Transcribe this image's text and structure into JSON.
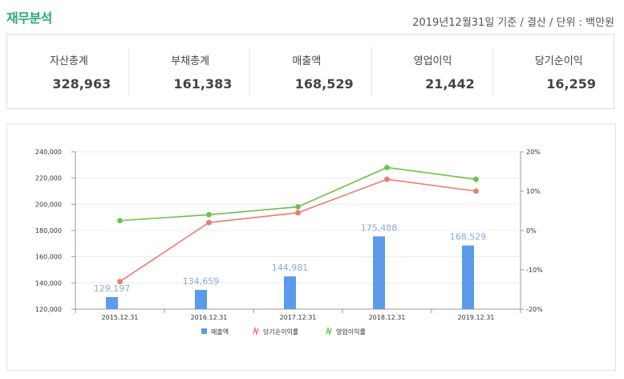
{
  "header": {
    "title": "재무분석",
    "basis": "2019년12월31일 기준 / 결산 / 단위 : 백만원"
  },
  "summary": [
    {
      "label": "자산총계",
      "value": "328,963"
    },
    {
      "label": "부채총계",
      "value": "161,383"
    },
    {
      "label": "매출액",
      "value": "168,529"
    },
    {
      "label": "영업이익",
      "value": "21,442"
    },
    {
      "label": "당기순이익",
      "value": "16,259"
    }
  ],
  "chart_data": {
    "type": "bar",
    "categories": [
      "2015.12.31",
      "2016.12.31",
      "2017.12.31",
      "2018.12.31",
      "2019.12.31"
    ],
    "series": [
      {
        "name": "매출액",
        "type": "bar",
        "axis": "left",
        "color": "#5b9bea",
        "values": [
          129197,
          134659,
          144981,
          175488,
          168529
        ],
        "labels": [
          "129,197",
          "134,659",
          "144,981",
          "175,488",
          "168,529"
        ]
      },
      {
        "name": "당기순이익률",
        "type": "line",
        "axis": "right",
        "color": "#ee7b70",
        "values": [
          -13,
          2,
          4.5,
          13,
          10
        ]
      },
      {
        "name": "영업이익률",
        "type": "line",
        "axis": "right",
        "color": "#6cc24a",
        "values": [
          2.5,
          4,
          6,
          16,
          13
        ]
      }
    ],
    "left_axis": {
      "min": 120000,
      "max": 240000,
      "ticks": [
        "120,000",
        "140,000",
        "160,000",
        "180,000",
        "200,000",
        "220,000",
        "240,000"
      ]
    },
    "right_axis": {
      "min": -20,
      "max": 20,
      "ticks": [
        "-20%",
        "-10%",
        "0%",
        "10%",
        "20%"
      ]
    },
    "legend": [
      "매출액",
      "당기순이익률",
      "영업이익률"
    ]
  }
}
